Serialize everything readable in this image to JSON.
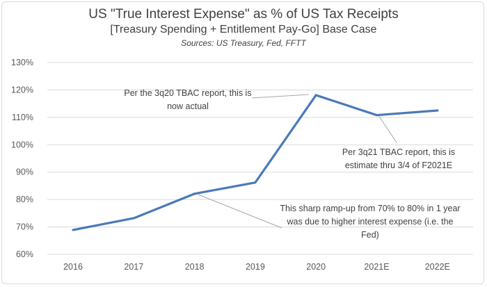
{
  "chart_data": {
    "type": "line",
    "title": "US \"True Interest Expense\" as % of US Tax Receipts",
    "subtitle": "[Treasury Spending + Entitlement Pay-Go] Base Case",
    "source": "Sources: US Treasury, Fed, FFTT",
    "categories": [
      "2016",
      "2017",
      "2018",
      "2019",
      "2020",
      "2021E",
      "2022E"
    ],
    "series": [
      {
        "values": [
          68.9,
          73.2,
          82.1,
          86.2,
          118.1,
          110.8,
          112.5
        ]
      }
    ],
    "ylim": [
      60,
      130
    ],
    "yticks": [
      60,
      70,
      80,
      90,
      100,
      110,
      120,
      130
    ],
    "ytick_labels": [
      "60%",
      "70%",
      "80%",
      "90%",
      "100%",
      "110%",
      "120%",
      "130%"
    ],
    "grid": true,
    "line_color": "#4a7ab8",
    "annotations": [
      {
        "lines": [
          "Per the 3q20 TBAC report, this is",
          "now actual"
        ],
        "target_index": 4
      },
      {
        "lines": [
          "Per 3q21 TBAC report, this is",
          "estimate thru 3/4 of F2021E"
        ],
        "target_index": 5
      },
      {
        "lines": [
          "This sharp ramp-up from 70% to 80% in 1 year",
          "was due to higher interest expense (i.e. the",
          "Fed)"
        ],
        "target_index": 2
      }
    ]
  }
}
